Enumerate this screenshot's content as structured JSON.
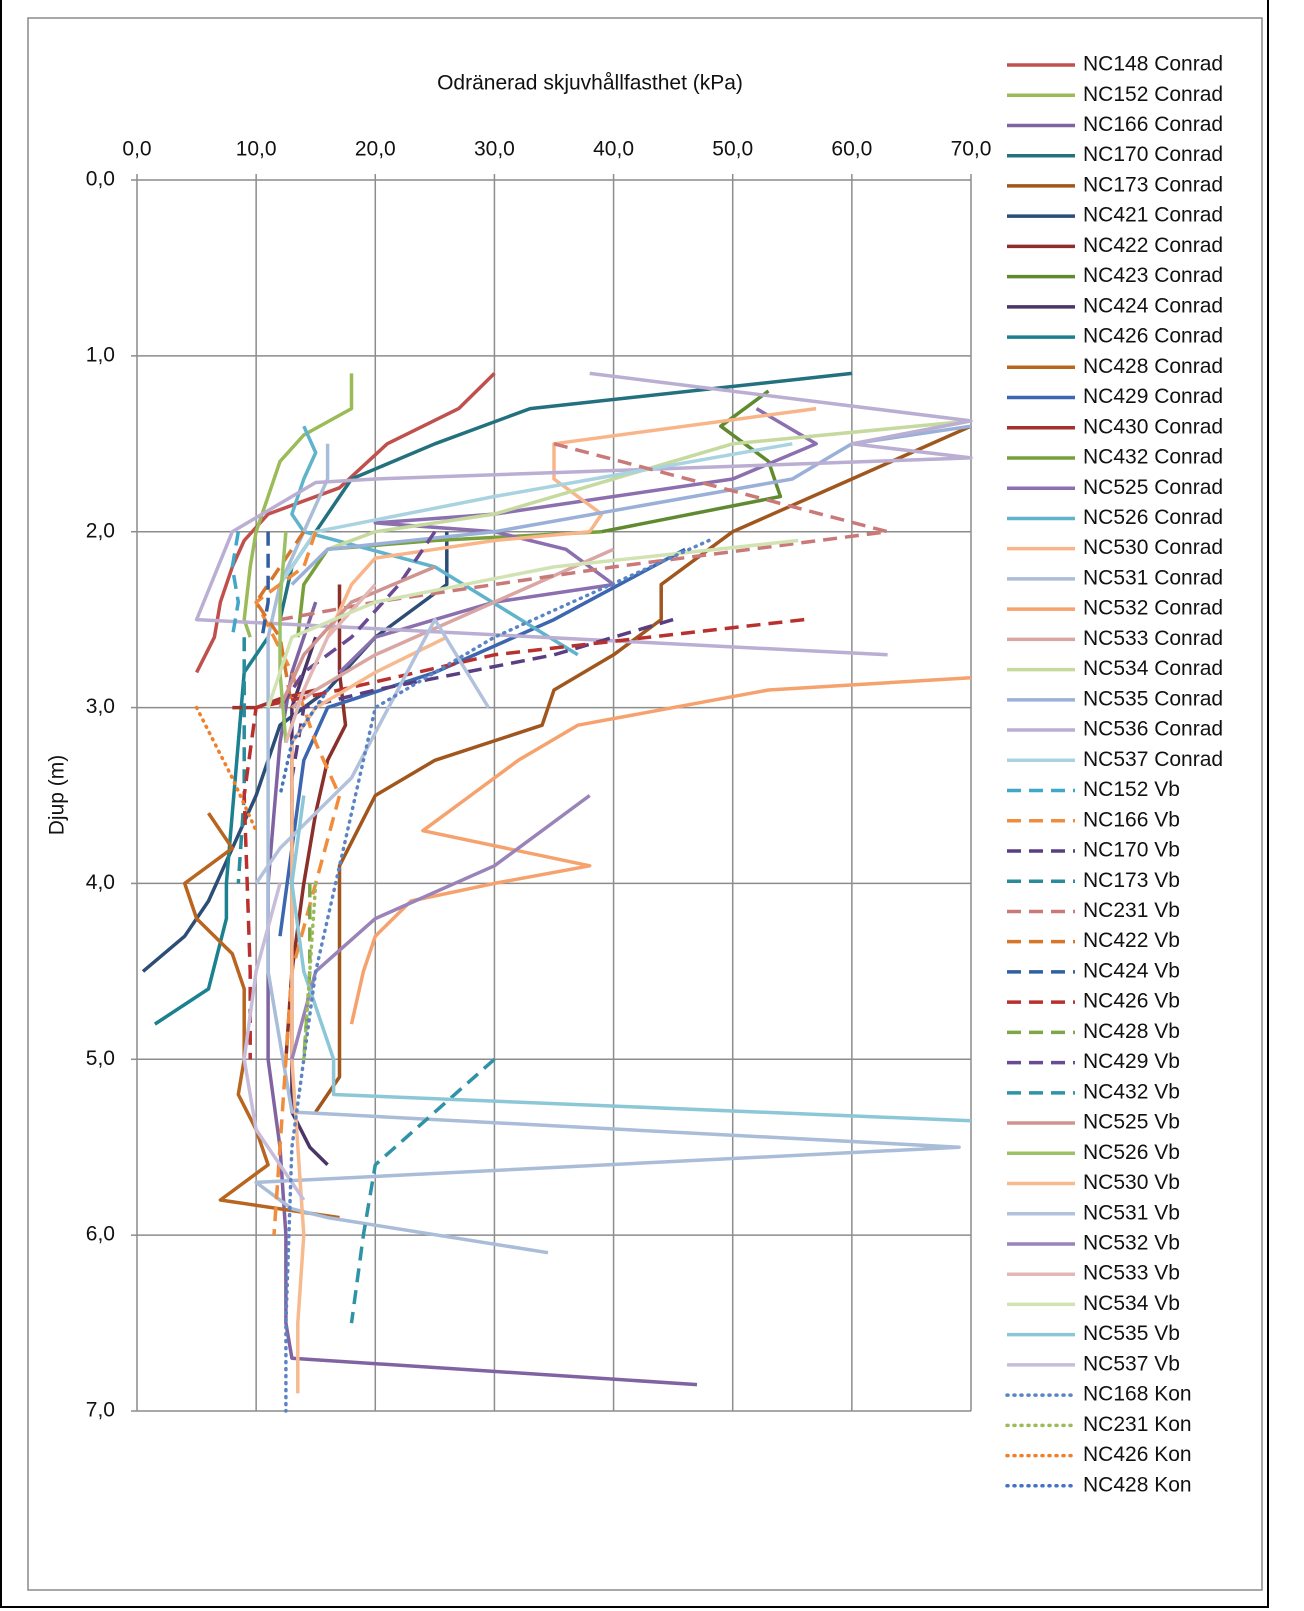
{
  "chart_data": {
    "type": "line",
    "title": "Odränerad skjuvhållfasthet (kPa)",
    "y_label": "Djup (m)",
    "xlim": [
      0,
      70
    ],
    "ylim": [
      0,
      7
    ],
    "y_inverted": true,
    "x_axis_position": "top",
    "grid": true,
    "legend": "right",
    "xticks": [
      {
        "value": 0,
        "label": "0,0"
      },
      {
        "value": 10,
        "label": "10,0"
      },
      {
        "value": 20,
        "label": "20,0"
      },
      {
        "value": 30,
        "label": "30,0"
      },
      {
        "value": 40,
        "label": "40,0"
      },
      {
        "value": 50,
        "label": "50,0"
      },
      {
        "value": 60,
        "label": "60,0"
      },
      {
        "value": 70,
        "label": "70,0"
      }
    ],
    "yticks": [
      {
        "value": 0,
        "label": "0,0"
      },
      {
        "value": 1,
        "label": "1,0"
      },
      {
        "value": 2,
        "label": "2,0"
      },
      {
        "value": 3,
        "label": "3,0"
      },
      {
        "value": 4,
        "label": "4,0"
      },
      {
        "value": 5,
        "label": "5,0"
      },
      {
        "value": 6,
        "label": "6,0"
      },
      {
        "value": 7,
        "label": "7,0"
      }
    ],
    "series": [
      {
        "name": "NC148 Conrad",
        "color": "#c0504d",
        "dash": "solid",
        "x": [
          30,
          27,
          21,
          17,
          11,
          9,
          8,
          7,
          6.5,
          5
        ],
        "y": [
          1.1,
          1.3,
          1.5,
          1.75,
          1.9,
          2.05,
          2.2,
          2.4,
          2.6,
          2.8
        ]
      },
      {
        "name": "NC152 Conrad",
        "color": "#9bbb59",
        "dash": "solid",
        "x": [
          18,
          18,
          14,
          12,
          11,
          10,
          9.5,
          9,
          9.5
        ],
        "y": [
          1.1,
          1.3,
          1.45,
          1.6,
          1.8,
          2.0,
          2.2,
          2.5,
          2.6
        ]
      },
      {
        "name": "NC166 Conrad",
        "color": "#8064a2",
        "dash": "solid",
        "x": [
          15,
          13,
          12,
          11.5,
          11,
          11,
          11,
          12,
          12.5,
          12.5,
          13,
          47
        ],
        "y": [
          2.4,
          2.8,
          3.2,
          3.6,
          4.0,
          4.5,
          5.0,
          5.5,
          6.0,
          6.5,
          6.7,
          6.85
        ]
      },
      {
        "name": "NC170 Conrad",
        "color": "#23707e",
        "dash": "solid",
        "x": [
          60,
          33,
          25,
          18,
          15,
          13,
          12
        ],
        "y": [
          1.1,
          1.3,
          1.5,
          1.7,
          2.0,
          2.2,
          2.5
        ]
      },
      {
        "name": "NC173 Conrad",
        "color": "#a0561d",
        "dash": "solid",
        "x": [
          70,
          60,
          50,
          44,
          44,
          40,
          35,
          34,
          25,
          20,
          18.5,
          17,
          17,
          17,
          15
        ],
        "y": [
          1.4,
          1.7,
          2.0,
          2.3,
          2.5,
          2.7,
          2.9,
          3.1,
          3.3,
          3.5,
          3.7,
          3.9,
          4.4,
          5.1,
          5.3
        ]
      },
      {
        "name": "NC421 Conrad",
        "color": "#2c4d75",
        "dash": "solid",
        "x": [
          26,
          26,
          20,
          16,
          12,
          10,
          8,
          6,
          4,
          0.5
        ],
        "y": [
          2.0,
          2.3,
          2.6,
          2.9,
          3.1,
          3.5,
          3.8,
          4.1,
          4.3,
          4.5
        ]
      },
      {
        "name": "NC422 Conrad",
        "color": "#8b2f2b",
        "dash": "solid",
        "x": [
          17,
          17,
          17.5,
          16,
          15,
          14,
          13,
          12.5
        ],
        "y": [
          2.3,
          2.8,
          3.1,
          3.3,
          3.6,
          4.0,
          4.5,
          5.0
        ]
      },
      {
        "name": "NC423 Conrad",
        "color": "#5f8a2f",
        "dash": "solid",
        "x": [
          53,
          49,
          53,
          54,
          39
        ],
        "y": [
          1.2,
          1.4,
          1.6,
          1.8,
          2.0
        ]
      },
      {
        "name": "NC424 Conrad",
        "color": "#4b3468",
        "dash": "solid",
        "x": [
          15,
          13,
          13,
          13,
          13,
          13,
          13,
          14.5,
          16
        ],
        "y": [
          2.6,
          3.0,
          3.5,
          4.0,
          4.5,
          5.0,
          5.3,
          5.5,
          5.6
        ]
      },
      {
        "name": "NC426 Conrad",
        "color": "#1b8191",
        "dash": "solid",
        "x": [
          11,
          9,
          8.5,
          8,
          7.5,
          7.5,
          6,
          1.5
        ],
        "y": [
          2.6,
          2.8,
          3.2,
          3.6,
          4.0,
          4.2,
          4.6,
          4.8
        ]
      },
      {
        "name": "NC428 Conrad",
        "color": "#b8651f",
        "dash": "solid",
        "x": [
          6,
          8,
          4,
          5,
          8,
          9,
          9,
          8.5,
          10,
          11,
          7,
          17
        ],
        "y": [
          3.6,
          3.8,
          4.0,
          4.2,
          4.4,
          4.6,
          5.0,
          5.2,
          5.4,
          5.6,
          5.8,
          5.9
        ]
      },
      {
        "name": "NC429 Conrad",
        "color": "#3c67b0",
        "dash": "solid",
        "x": [
          46,
          35,
          25,
          16,
          14,
          13,
          12
        ],
        "y": [
          2.1,
          2.5,
          2.8,
          3.0,
          3.3,
          3.8,
          4.3
        ]
      },
      {
        "name": "NC430 Conrad",
        "color": "#a3322e",
        "dash": "solid",
        "x": [
          15,
          12,
          10,
          8
        ],
        "y": [
          2.9,
          2.95,
          3.0,
          3.0
        ]
      },
      {
        "name": "NC432 Conrad",
        "color": "#77a03a",
        "dash": "solid",
        "x": [
          39,
          25,
          16,
          14,
          13.5
        ],
        "y": [
          2.0,
          2.05,
          2.1,
          2.3,
          2.6
        ]
      },
      {
        "name": "NC525 Conrad",
        "color": "#8b6fae",
        "dash": "solid",
        "x": [
          52,
          57,
          50,
          40,
          30,
          20,
          30,
          36,
          40,
          30,
          25,
          20,
          17
        ],
        "y": [
          1.3,
          1.5,
          1.7,
          1.8,
          1.9,
          1.95,
          2.0,
          2.1,
          2.3,
          2.4,
          2.5,
          2.6,
          2.8
        ]
      },
      {
        "name": "NC526 Conrad",
        "color": "#5fb3cb",
        "dash": "solid",
        "x": [
          14,
          15,
          14,
          13,
          14,
          25,
          37
        ],
        "y": [
          1.4,
          1.55,
          1.7,
          1.9,
          2.0,
          2.2,
          2.7
        ]
      },
      {
        "name": "NC530 Conrad",
        "color": "#f9b58a",
        "dash": "solid",
        "x": [
          57,
          35,
          35,
          39,
          38,
          30,
          25,
          20,
          18,
          16
        ],
        "y": [
          1.3,
          1.5,
          1.7,
          1.9,
          2.0,
          2.05,
          2.1,
          2.15,
          2.3,
          2.6
        ]
      },
      {
        "name": "NC531 Conrad",
        "color": "#a9bcd8",
        "dash": "solid",
        "x": [
          16,
          16,
          14,
          12,
          11,
          11,
          13,
          69,
          10,
          13,
          16,
          34.5
        ],
        "y": [
          1.5,
          1.7,
          2.0,
          2.3,
          2.6,
          4.5,
          5.3,
          5.5,
          5.7,
          5.85,
          5.9,
          6.1
        ]
      },
      {
        "name": "NC532 Conrad",
        "color": "#f6a26e",
        "dash": "solid",
        "x": [
          70,
          53,
          37,
          32,
          28,
          24,
          38,
          30,
          23,
          20,
          19,
          18
        ],
        "y": [
          2.83,
          2.9,
          3.1,
          3.3,
          3.5,
          3.7,
          3.9,
          4.0,
          4.1,
          4.3,
          4.5,
          4.8
        ]
      },
      {
        "name": "NC533 Conrad",
        "color": "#d9a6a3",
        "dash": "solid",
        "x": [
          40,
          30,
          20,
          15,
          13
        ],
        "y": [
          2.1,
          2.4,
          2.7,
          2.9,
          3.0
        ]
      },
      {
        "name": "NC534 Conrad",
        "color": "#c6daa0",
        "dash": "solid",
        "x": [
          70,
          50,
          30,
          20,
          16
        ],
        "y": [
          1.37,
          1.5,
          1.9,
          2.0,
          2.1
        ]
      },
      {
        "name": "NC535 Conrad",
        "color": "#9ab0d8",
        "dash": "solid",
        "x": [
          70,
          60,
          55,
          30,
          16,
          13
        ],
        "y": [
          1.4,
          1.5,
          1.7,
          2.0,
          2.1,
          2.3
        ]
      },
      {
        "name": "NC536 Conrad",
        "color": "#bbaed3",
        "dash": "solid",
        "x": [
          38,
          70,
          60,
          70,
          20,
          15,
          8,
          5,
          63
        ],
        "y": [
          1.1,
          1.37,
          1.5,
          1.58,
          1.7,
          1.72,
          2.0,
          2.5,
          2.7
        ]
      },
      {
        "name": "NC537 Conrad",
        "color": "#a9d3e0",
        "dash": "solid",
        "x": [
          55,
          30,
          15,
          12
        ],
        "y": [
          1.5,
          1.8,
          2.0,
          2.3
        ]
      },
      {
        "name": "NC152 Vb",
        "color": "#3fa8c8",
        "dash": "dash",
        "x": [
          8.5,
          8,
          8.5,
          8
        ],
        "y": [
          2.0,
          2.2,
          2.4,
          2.6
        ]
      },
      {
        "name": "NC166 Vb",
        "color": "#f08c3b",
        "dash": "dash",
        "x": [
          15,
          14,
          10,
          13,
          15,
          17,
          13,
          12,
          11.5
        ],
        "y": [
          2.0,
          2.2,
          2.4,
          2.8,
          3.2,
          3.5,
          4.5,
          5.5,
          6.0
        ]
      },
      {
        "name": "NC170 Vb",
        "color": "#5a3e82",
        "dash": "dash",
        "x": [
          45,
          35,
          20,
          14,
          13,
          13
        ],
        "y": [
          2.5,
          2.7,
          2.9,
          3.0,
          3.4,
          4.0
        ]
      },
      {
        "name": "NC173 Vb",
        "color": "#2a8b9b",
        "dash": "dash",
        "x": [
          9,
          9,
          9,
          8.5
        ],
        "y": [
          2.6,
          3.0,
          3.5,
          4.0
        ]
      },
      {
        "name": "NC231 Vb",
        "color": "#c97a78",
        "dash": "dash",
        "x": [
          35,
          63,
          40,
          20,
          12
        ],
        "y": [
          1.5,
          2.0,
          2.2,
          2.4,
          2.5
        ]
      },
      {
        "name": "NC422 Vb",
        "color": "#d5762a",
        "dash": "dash",
        "x": [
          14,
          12,
          10,
          12,
          13
        ],
        "y": [
          2.0,
          2.2,
          2.4,
          2.6,
          3.0
        ]
      },
      {
        "name": "NC424 Vb",
        "color": "#30609f",
        "dash": "dash",
        "x": [
          11,
          11,
          11,
          10.5
        ],
        "y": [
          2.0,
          2.2,
          2.4,
          2.6
        ]
      },
      {
        "name": "NC426 Vb",
        "color": "#b8312f",
        "dash": "dash",
        "x": [
          56,
          30,
          17,
          10,
          9,
          9.5,
          9.5
        ],
        "y": [
          2.5,
          2.7,
          2.9,
          3.0,
          3.5,
          4.5,
          5.0
        ]
      },
      {
        "name": "NC428 Vb",
        "color": "#7fa747",
        "dash": "dash",
        "x": [
          14.5,
          14.5,
          14.5,
          14
        ],
        "y": [
          4.0,
          4.2,
          4.5,
          5.0
        ]
      },
      {
        "name": "NC429 Vb",
        "color": "#6a4a94",
        "dash": "dash",
        "x": [
          25,
          22,
          18,
          14,
          12
        ],
        "y": [
          2.0,
          2.3,
          2.6,
          2.8,
          3.0
        ]
      },
      {
        "name": "NC432 Vb",
        "color": "#2f93a8",
        "dash": "dash",
        "x": [
          30,
          20,
          19,
          18
        ],
        "y": [
          5.0,
          5.6,
          6.0,
          6.5
        ]
      },
      {
        "name": "NC525 Vb",
        "color": "#d09490",
        "dash": "solid",
        "x": [
          25,
          18,
          14,
          12
        ],
        "y": [
          2.2,
          2.4,
          2.7,
          3.0
        ]
      },
      {
        "name": "NC526 Vb",
        "color": "#9cc065",
        "dash": "solid",
        "x": [
          12.5,
          12,
          12,
          12.5
        ],
        "y": [
          2.0,
          2.4,
          2.8,
          3.2
        ]
      },
      {
        "name": "NC530 Vb",
        "color": "#f7b98e",
        "dash": "solid",
        "x": [
          26,
          20,
          15,
          13,
          13,
          14,
          13.5,
          13.5
        ],
        "y": [
          2.6,
          2.8,
          3.0,
          3.2,
          5.0,
          6.0,
          6.5,
          6.9
        ]
      },
      {
        "name": "NC531 Vb",
        "color": "#b3c2dc",
        "dash": "solid",
        "x": [
          29.5,
          25,
          18,
          12,
          10
        ],
        "y": [
          3.0,
          2.5,
          3.4,
          3.8,
          4.0
        ]
      },
      {
        "name": "NC532 Vb",
        "color": "#9a83b8",
        "dash": "solid",
        "x": [
          38,
          30,
          20,
          15,
          13
        ],
        "y": [
          3.5,
          3.9,
          4.2,
          4.5,
          5.0
        ]
      },
      {
        "name": "NC533 Vb",
        "color": "#e2b7b5",
        "dash": "solid",
        "x": [
          20,
          16,
          14,
          12.5
        ],
        "y": [
          2.3,
          2.6,
          2.9,
          3.2
        ]
      },
      {
        "name": "NC534 Vb",
        "color": "#d2e3b3",
        "dash": "solid",
        "x": [
          55.5,
          35,
          20,
          13,
          11
        ],
        "y": [
          2.05,
          2.2,
          2.4,
          2.6,
          3.0
        ]
      },
      {
        "name": "NC535 Vb",
        "color": "#8cc7d8",
        "dash": "solid",
        "x": [
          14,
          13,
          14,
          16.5,
          16.5,
          70
        ],
        "y": [
          3.5,
          4.0,
          4.5,
          5.0,
          5.2,
          5.35
        ]
      },
      {
        "name": "NC537 Vb",
        "color": "#c7bddb",
        "dash": "solid",
        "x": [
          12,
          10,
          9,
          10,
          12,
          14
        ],
        "y": [
          4.0,
          4.5,
          5.0,
          5.4,
          5.6,
          5.8
        ]
      },
      {
        "name": "NC168 Kon",
        "color": "#5b84c4",
        "dash": "dot",
        "x": [
          48,
          30,
          20,
          18,
          15,
          13,
          12.5,
          12.5
        ],
        "y": [
          2.05,
          2.6,
          3.0,
          3.6,
          4.5,
          5.5,
          6.5,
          7.0
        ]
      },
      {
        "name": "NC231 Kon",
        "color": "#9bbb59",
        "dash": "dot",
        "x": [
          15,
          14.5,
          14
        ],
        "y": [
          4.0,
          4.5,
          5.0
        ]
      },
      {
        "name": "NC426 Kon",
        "color": "#f07f2a",
        "dash": "dot",
        "x": [
          5,
          8,
          10
        ],
        "y": [
          3.0,
          3.4,
          3.7
        ]
      },
      {
        "name": "NC428 Kon",
        "color": "#4472c4",
        "dash": "dot",
        "x": [
          16,
          13,
          12
        ],
        "y": [
          2.9,
          3.2,
          3.5
        ]
      }
    ]
  }
}
